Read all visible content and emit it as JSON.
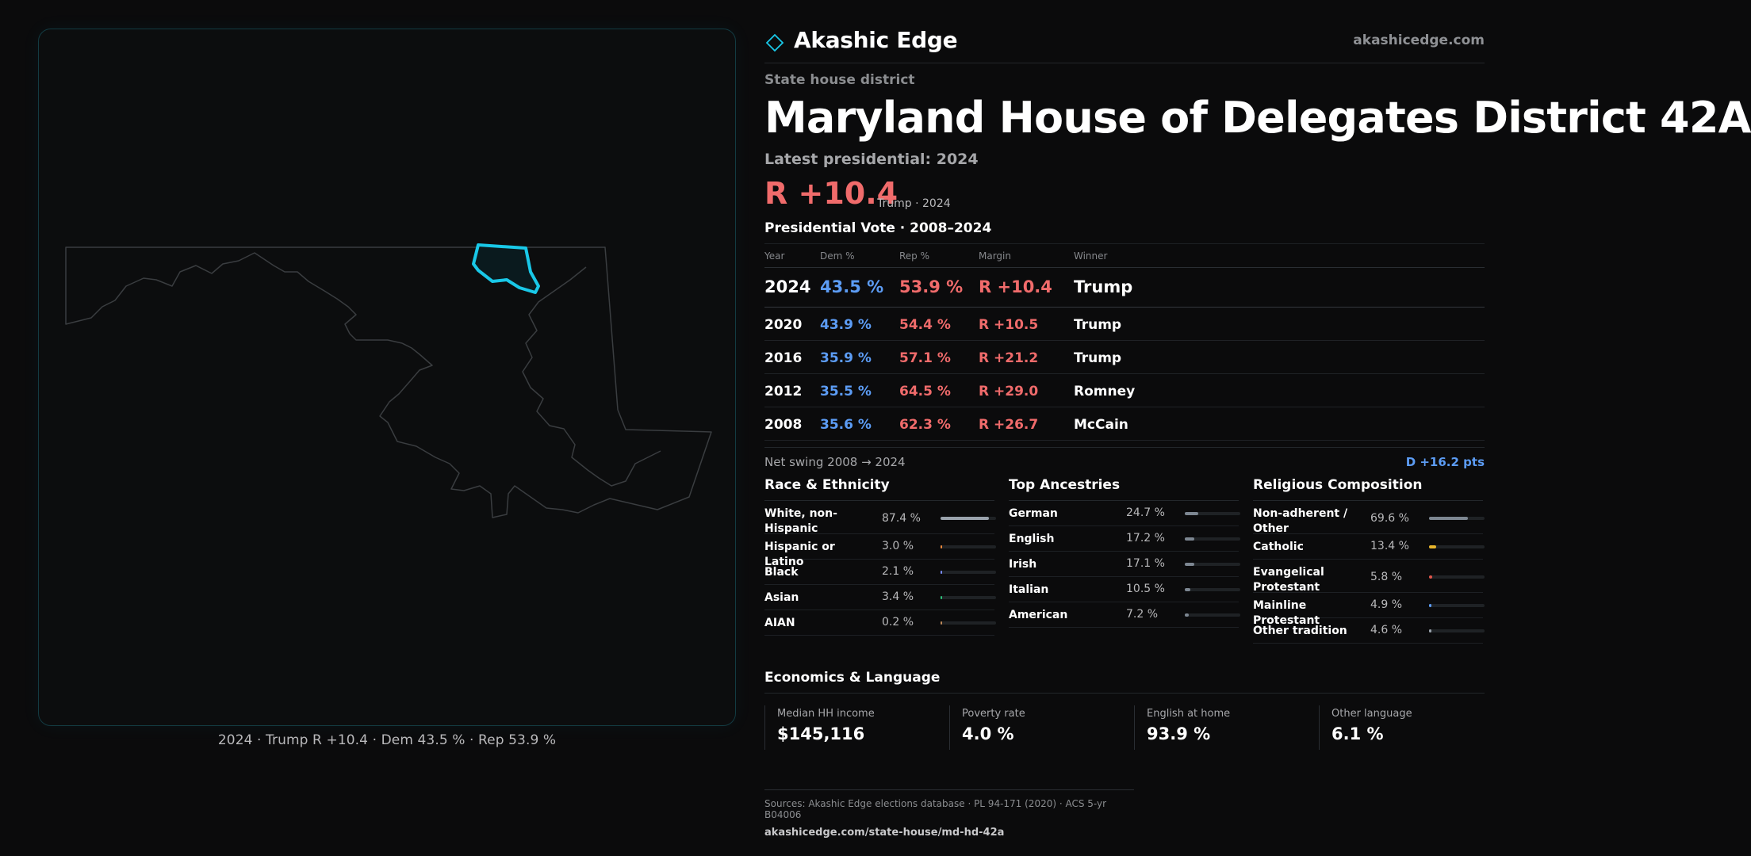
{
  "brand": {
    "name": "Akashic Edge",
    "url": "akashicedge.com"
  },
  "kicker": "State house district",
  "title": "Maryland House of Delegates District 42A",
  "latest_label": "Latest presidential: 2024",
  "margin": {
    "value": "R +10.4",
    "sub": "Trump · 2024"
  },
  "presidential": {
    "title": "Presidential Vote · 2008–2024",
    "headers": {
      "year": "Year",
      "dem": "Dem %",
      "rep": "Rep %",
      "margin": "Margin",
      "winner": "Winner"
    },
    "rows": [
      {
        "year": "2024",
        "dem": "43.5 %",
        "rep": "53.9 %",
        "margin": "R +10.4",
        "winner": "Trump"
      },
      {
        "year": "2020",
        "dem": "43.9 %",
        "rep": "54.4 %",
        "margin": "R +10.5",
        "winner": "Trump"
      },
      {
        "year": "2016",
        "dem": "35.9 %",
        "rep": "57.1 %",
        "margin": "R +21.2",
        "winner": "Trump"
      },
      {
        "year": "2012",
        "dem": "35.5 %",
        "rep": "64.5 %",
        "margin": "R +29.0",
        "winner": "Romney"
      },
      {
        "year": "2008",
        "dem": "35.6 %",
        "rep": "62.3 %",
        "margin": "R +26.7",
        "winner": "McCain"
      }
    ]
  },
  "swing": {
    "label": "Net swing 2008 → 2024",
    "value": "D +16.2 pts"
  },
  "race": {
    "title": "Race & Ethnicity",
    "rows": [
      {
        "label": "White, non-Hispanic",
        "pct": "87.4 %",
        "share": 0.874,
        "color": "#9aa3ad"
      },
      {
        "label": "Hispanic or Latino",
        "pct": "3.0 %",
        "share": 0.03,
        "color": "#f08a3c"
      },
      {
        "label": "Black",
        "pct": "2.1 %",
        "share": 0.021,
        "color": "#7a8cff"
      },
      {
        "label": "Asian",
        "pct": "3.4 %",
        "share": 0.034,
        "color": "#2ec07a"
      },
      {
        "label": "AIAN",
        "pct": "0.2 %",
        "share": 0.002,
        "color": "#c08a5a"
      }
    ]
  },
  "ancestry": {
    "title": "Top Ancestries",
    "rows": [
      {
        "label": "German",
        "pct": "24.7 %",
        "share": 0.247,
        "color": "#7d8792"
      },
      {
        "label": "English",
        "pct": "17.2 %",
        "share": 0.172,
        "color": "#7d8792"
      },
      {
        "label": "Irish",
        "pct": "17.1 %",
        "share": 0.171,
        "color": "#7d8792"
      },
      {
        "label": "Italian",
        "pct": "10.5 %",
        "share": 0.105,
        "color": "#7d8792"
      },
      {
        "label": "American",
        "pct": "7.2 %",
        "share": 0.072,
        "color": "#7d8792"
      }
    ]
  },
  "religion": {
    "title": "Religious Composition",
    "rows": [
      {
        "label": "Non-adherent / Other",
        "pct": "69.6 %",
        "share": 0.696,
        "color": "#7d8792"
      },
      {
        "label": "Catholic",
        "pct": "13.4 %",
        "share": 0.134,
        "color": "#e8b52c"
      },
      {
        "label": "Evangelical Protestant",
        "pct": "5.8 %",
        "share": 0.058,
        "color": "#e0554a"
      },
      {
        "label": "Mainline Protestant",
        "pct": "4.9 %",
        "share": 0.049,
        "color": "#5c9cf4"
      },
      {
        "label": "Other tradition",
        "pct": "4.6 %",
        "share": 0.046,
        "color": "#9aa3ad"
      }
    ]
  },
  "economics": {
    "title": "Economics & Language",
    "items": [
      {
        "label": "Median HH income",
        "value": "$145,116"
      },
      {
        "label": "Poverty rate",
        "value": "4.0 %"
      },
      {
        "label": "English at home",
        "value": "93.9 %"
      },
      {
        "label": "Other language",
        "value": "6.1 %"
      }
    ]
  },
  "map_caption": "2024 · Trump R +10.4 · Dem 43.5 % · Rep 53.9 %",
  "sources": {
    "line1": "Sources: Akashic Edge elections database · PL 94-171 (2020) · ACS 5-yr B04006",
    "line2": "akashicedge.com/state-house/md-hd-42a"
  },
  "colors": {
    "dem": "#5c9cf4",
    "rep": "#f06b6b",
    "district_outline": "#19c8e8",
    "state_outline": "#3a3d40"
  }
}
